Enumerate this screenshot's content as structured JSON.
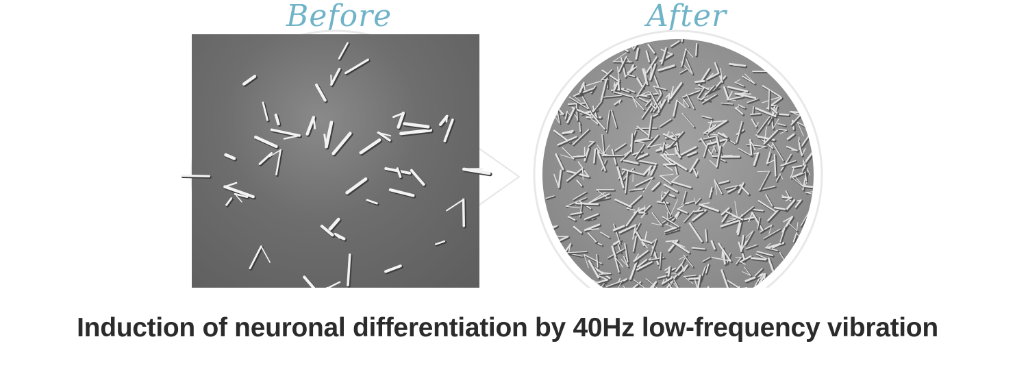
{
  "labels": {
    "before": "Before",
    "after": "After"
  },
  "caption": "Induction of neuronal differentiation by 40Hz low-frequency vibration",
  "images": {
    "before": "microscope-cells-sparse",
    "after": "microscope-cells-dense"
  },
  "colors": {
    "script_label": "#6fb3c8",
    "caption_text": "#2b2b2b",
    "ring": "#e7e7e7",
    "before_bg": "#6a6a6a",
    "after_bg": "#8e8e8e"
  }
}
